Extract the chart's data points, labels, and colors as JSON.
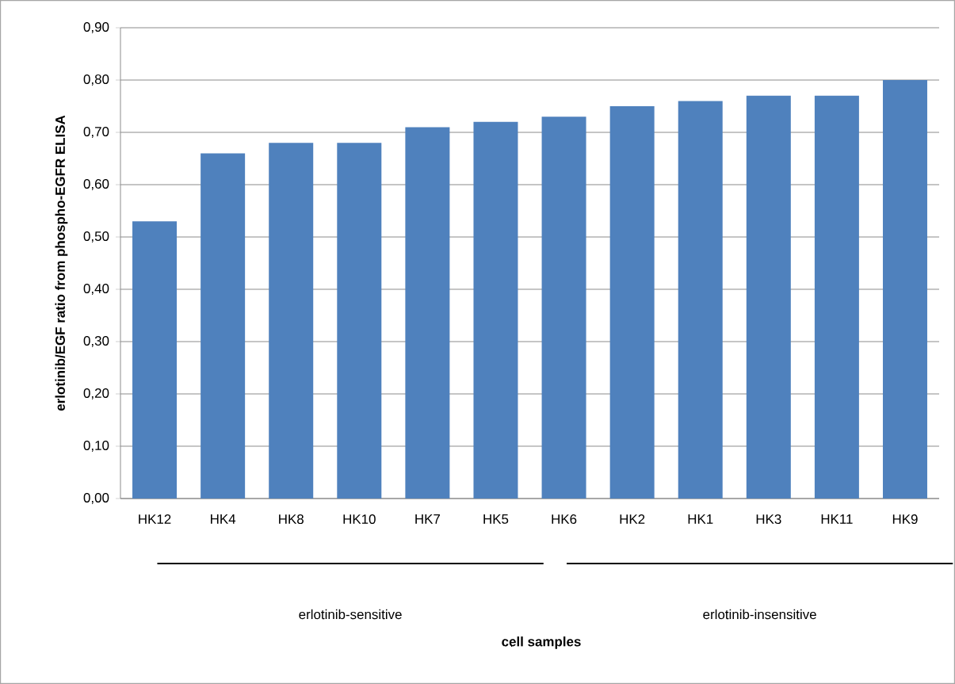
{
  "chart_data": {
    "type": "bar",
    "ylabel": "erlotinib/EGF ratio from phospho-EGFR ELISA",
    "categories": [
      "HK12",
      "HK4",
      "HK8",
      "HK10",
      "HK7",
      "HK5",
      "HK6",
      "HK2",
      "HK1",
      "HK3",
      "HK11",
      "HK9"
    ],
    "values": [
      0.53,
      0.66,
      0.68,
      0.68,
      0.71,
      0.72,
      0.73,
      0.75,
      0.76,
      0.77,
      0.77,
      0.8
    ],
    "color": "#4f81bd",
    "ylim": [
      0,
      0.9
    ],
    "yticks": [
      {
        "value": 0,
        "label": "0,00"
      },
      {
        "value": 0.1,
        "label": "0,10"
      },
      {
        "value": 0.2,
        "label": "0,20"
      },
      {
        "value": 0.3,
        "label": "0,30"
      },
      {
        "value": 0.4,
        "label": "0,40"
      },
      {
        "value": 0.5,
        "label": "0,50"
      },
      {
        "value": 0.6,
        "label": "0,60"
      },
      {
        "value": 0.7,
        "label": "0,70"
      },
      {
        "value": 0.8,
        "label": "0,80"
      },
      {
        "value": 0.9,
        "label": "0,90"
      }
    ],
    "grid": "y",
    "annotations": [
      "erlotinib-sensitive",
      "erlotinib-insensitive",
      "cell samples"
    ]
  }
}
